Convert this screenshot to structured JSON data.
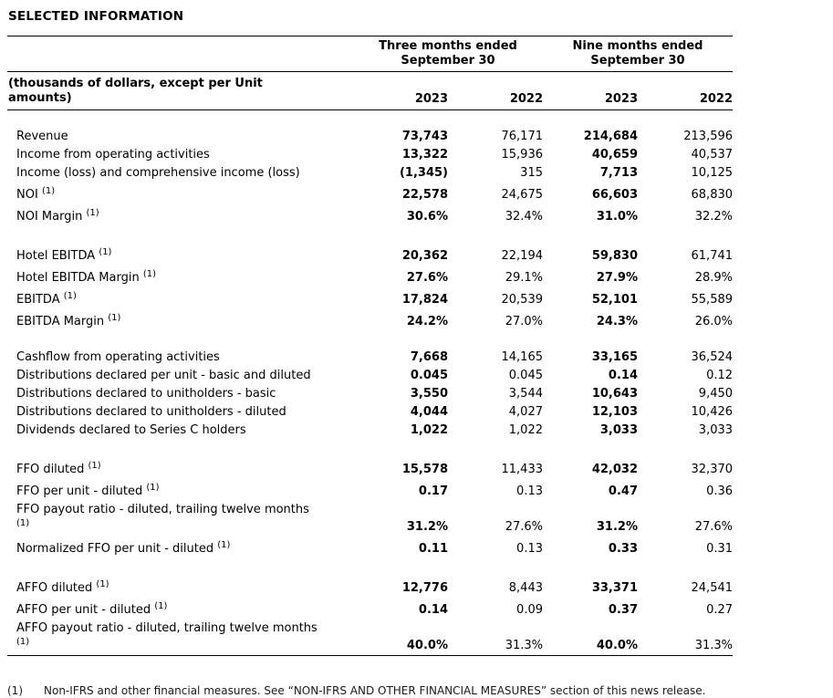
{
  "page": {
    "title": "SELECTED INFORMATION"
  },
  "table": {
    "unit_note": "(thousands of dollars, except per Unit amounts)",
    "col_groups": [
      {
        "label": "Three months ended September 30"
      },
      {
        "label": "Nine months ended September 30"
      }
    ],
    "year_headers": [
      "2023",
      "2022",
      "2023",
      "2022"
    ],
    "sections": [
      {
        "rows": [
          {
            "label": "Revenue",
            "values": [
              "73,743",
              "76,171",
              "214,684",
              "213,596"
            ]
          },
          {
            "label": "Income from operating activities",
            "values": [
              "13,322",
              "15,936",
              "40,659",
              "40,537"
            ]
          },
          {
            "label": "Income (loss) and comprehensive income (loss)",
            "values": [
              "(1,345)",
              "315",
              "7,713",
              "10,125"
            ]
          },
          {
            "label": "NOI",
            "sup": "(1)",
            "values": [
              "22,578",
              "24,675",
              "66,603",
              "68,830"
            ]
          },
          {
            "label": "NOI Margin",
            "sup": "(1)",
            "values": [
              "30.6%",
              "32.4%",
              "31.0%",
              "32.2%"
            ]
          }
        ]
      },
      {
        "rows": [
          {
            "label": "Hotel EBITDA",
            "sup": "(1)",
            "values": [
              "20,362",
              "22,194",
              "59,830",
              "61,741"
            ]
          },
          {
            "label": "Hotel EBITDA Margin",
            "sup": "(1)",
            "values": [
              "27.6%",
              "29.1%",
              "27.9%",
              "28.9%"
            ]
          },
          {
            "label": "EBITDA",
            "sup": "(1)",
            "values": [
              "17,824",
              "20,539",
              "52,101",
              "55,589"
            ]
          },
          {
            "label": "EBITDA Margin",
            "sup": "(1)",
            "values": [
              "24.2%",
              "27.0%",
              "24.3%",
              "26.0%"
            ]
          }
        ]
      },
      {
        "rows": [
          {
            "label": "Cashflow from operating activities",
            "values": [
              "7,668",
              "14,165",
              "33,165",
              "36,524"
            ]
          },
          {
            "label": "Distributions declared per unit - basic and diluted",
            "values": [
              "0.045",
              "0.045",
              "0.14",
              "0.12"
            ]
          },
          {
            "label": "Distributions declared to unitholders - basic",
            "values": [
              "3,550",
              "3,544",
              "10,643",
              "9,450"
            ]
          },
          {
            "label": "Distributions declared to unitholders - diluted",
            "values": [
              "4,044",
              "4,027",
              "12,103",
              "10,426"
            ]
          },
          {
            "label": "Dividends declared to Series C holders",
            "values": [
              "1,022",
              "1,022",
              "3,033",
              "3,033"
            ]
          }
        ]
      },
      {
        "rows": [
          {
            "label": "FFO diluted",
            "sup": "(1)",
            "values": [
              "15,578",
              "11,433",
              "42,032",
              "32,370"
            ]
          },
          {
            "label": "FFO per unit - diluted",
            "sup": "(1)",
            "values": [
              "0.17",
              "0.13",
              "0.47",
              "0.36"
            ]
          },
          {
            "label": "FFO payout ratio - diluted, trailing twelve months",
            "sup": "(1)",
            "sup_break": true,
            "values": [
              "31.2%",
              "27.6%",
              "31.2%",
              "27.6%"
            ]
          },
          {
            "label": "Normalized FFO per unit - diluted",
            "sup": "(1)",
            "values": [
              "0.11",
              "0.13",
              "0.33",
              "0.31"
            ]
          }
        ]
      },
      {
        "rows": [
          {
            "label": "AFFO diluted",
            "sup": "(1)",
            "values": [
              "12,776",
              "8,443",
              "33,371",
              "24,541"
            ]
          },
          {
            "label": "AFFO per unit - diluted",
            "sup": "(1)",
            "values": [
              "0.14",
              "0.09",
              "0.37",
              "0.27"
            ]
          },
          {
            "label": "AFFO payout ratio - diluted, trailing twelve months",
            "sup": "(1)",
            "sup_break": true,
            "values": [
              "40.0%",
              "31.3%",
              "40.0%",
              "31.3%"
            ]
          }
        ]
      }
    ]
  },
  "footnote": {
    "marker": "(1)",
    "text": "Non-IFRS and other financial measures. See “NON-IFRS AND OTHER FINANCIAL MEASURES” section of this news release."
  }
}
